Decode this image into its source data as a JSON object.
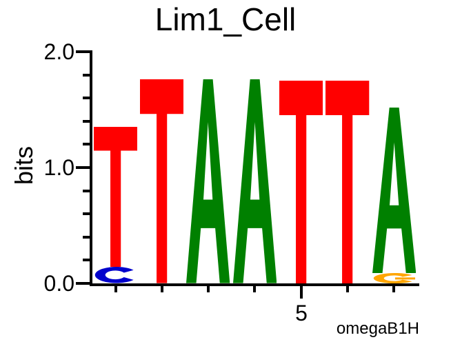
{
  "title": "Lim1_Cell",
  "y_axis": {
    "label": "bits",
    "range": [
      0,
      2
    ],
    "major_ticks": [
      {
        "value": 2.0,
        "label": "2.0"
      },
      {
        "value": 1.0,
        "label": "1.0"
      },
      {
        "value": 0.0,
        "label": "0.0"
      }
    ],
    "minor_tick_step": 0.2
  },
  "x_axis": {
    "major_tick_label": "5",
    "major_tick_position": 5
  },
  "credit": "omegaB1H",
  "colors": {
    "A": "#008000",
    "C": "#0000CC",
    "G": "#FFA500",
    "T": "#FF0000",
    "axis": "#000000",
    "background": "#FFFFFF"
  },
  "chart_data": {
    "type": "sequence_logo",
    "title": "Lim1_Cell",
    "ylabel": "bits",
    "ylim": [
      0,
      2
    ],
    "consensus": "TTAATTA",
    "x_tick": {
      "position": 5,
      "label": "5"
    },
    "positions": [
      {
        "position": 1,
        "stack": [
          {
            "letter": "C",
            "bits": 0.14
          },
          {
            "letter": "T",
            "bits": 1.21
          }
        ]
      },
      {
        "position": 2,
        "stack": [
          {
            "letter": "T",
            "bits": 1.76
          }
        ]
      },
      {
        "position": 3,
        "stack": [
          {
            "letter": "A",
            "bits": 1.76
          }
        ]
      },
      {
        "position": 4,
        "stack": [
          {
            "letter": "A",
            "bits": 1.76
          }
        ]
      },
      {
        "position": 5,
        "stack": [
          {
            "letter": "T",
            "bits": 1.75
          }
        ]
      },
      {
        "position": 6,
        "stack": [
          {
            "letter": "T",
            "bits": 1.75
          }
        ]
      },
      {
        "position": 7,
        "stack": [
          {
            "letter": "G",
            "bits": 0.09
          },
          {
            "letter": "A",
            "bits": 1.43
          }
        ]
      }
    ],
    "annotation": "omegaB1H"
  }
}
